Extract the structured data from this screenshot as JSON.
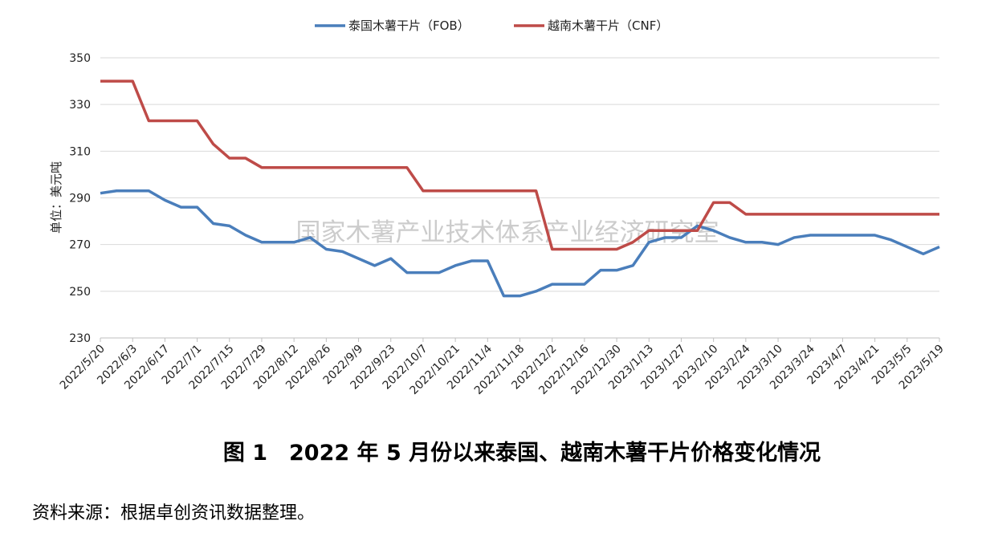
{
  "chart_data": {
    "type": "line",
    "legend": "top",
    "y_label": "单位：美元吨",
    "watermark": "国家木薯产业技术体系产业经济研究室",
    "caption": "图 1　2022 年 5 月份以来泰国、越南木薯干片价格变化情况",
    "source": "资料来源：根据卓创资讯数据整理。",
    "categories": [
      "2022/5/20",
      null,
      "2022/6/3",
      null,
      "2022/6/17",
      null,
      "2022/7/1",
      null,
      "2022/7/15",
      null,
      "2022/7/29",
      null,
      "2022/8/12",
      null,
      "2022/8/26",
      null,
      "2022/9/9",
      null,
      "2022/9/23",
      null,
      "2022/10/7",
      null,
      "2022/10/21",
      null,
      "2022/11/4",
      null,
      "2022/11/18",
      null,
      "2022/12/2",
      null,
      "2022/12/16",
      null,
      "2022/12/30",
      null,
      "2023/1/13",
      null,
      "2023/1/27",
      null,
      "2023/2/10",
      null,
      "2023/2/24",
      null,
      "2023/3/10",
      null,
      "2023/3/24",
      null,
      "2023/4/7",
      null,
      "2023/4/21",
      null,
      "2023/5/5",
      null,
      "2023/5/19"
    ],
    "series": [
      {
        "name": "泰国木薯干片（FOB）",
        "color": "#4a7ebb",
        "values": [
          292,
          293,
          293,
          293,
          289,
          286,
          286,
          279,
          278,
          274,
          271,
          271,
          271,
          273,
          268,
          267,
          264,
          261,
          264,
          258,
          258,
          258,
          261,
          263,
          263,
          248,
          248,
          250,
          253,
          253,
          253,
          259,
          259,
          261,
          271,
          273,
          273,
          278,
          276,
          273,
          271,
          271,
          270,
          273,
          274,
          274,
          274,
          274,
          274,
          272,
          269,
          266,
          269
        ]
      },
      {
        "name": "越南木薯干片（CNF）",
        "color": "#be4b48",
        "values": [
          340,
          340,
          340,
          323,
          323,
          323,
          323,
          313,
          307,
          307,
          303,
          303,
          303,
          303,
          303,
          303,
          303,
          303,
          303,
          303,
          293,
          293,
          293,
          293,
          293,
          293,
          293,
          293,
          268,
          268,
          268,
          268,
          268,
          271,
          276,
          276,
          276,
          276,
          288,
          288,
          283,
          283,
          283,
          283,
          283,
          283,
          283,
          283,
          283,
          283,
          283,
          283,
          283
        ]
      }
    ],
    "ylim": [
      230,
      350
    ],
    "yticks": [
      230,
      250,
      270,
      290,
      310,
      330,
      350
    ],
    "grid": true
  }
}
